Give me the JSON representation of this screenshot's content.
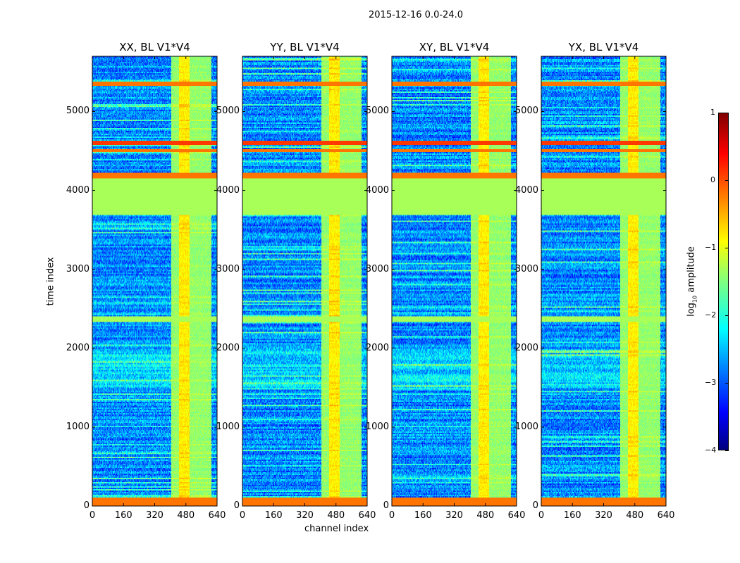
{
  "chart_data": {
    "type": "heatmap",
    "title": "2015-12-16 0.0-24.0",
    "panels": [
      {
        "title": "XX, BL V1*V4"
      },
      {
        "title": "YY, BL V1*V4"
      },
      {
        "title": "XY, BL V1*V4"
      },
      {
        "title": "YX, BL V1*V4"
      }
    ],
    "xlabel": "channel index",
    "ylabel": "time index",
    "xlim": [
      0,
      640
    ],
    "ylim": [
      0,
      5700
    ],
    "xticks": [
      "0",
      "160",
      "320",
      "480",
      "640"
    ],
    "yticks": [
      "0",
      "1000",
      "2000",
      "3000",
      "4000",
      "5000"
    ],
    "colorbar": {
      "label_main": "log",
      "label_sub": "10",
      "label_tail": " amplitude",
      "range": [
        -4,
        1
      ],
      "ticks": [
        "1",
        "0",
        "−1",
        "−2",
        "−3",
        "−4"
      ],
      "colormap": "jet"
    },
    "background_level": -2.7,
    "time_bands": [
      {
        "from": 0,
        "to": 100,
        "level": -0.2
      },
      {
        "from": 2330,
        "to": 2400,
        "level": -1.3
      },
      {
        "from": 3680,
        "to": 4150,
        "level": -1.3
      },
      {
        "from": 4150,
        "to": 4220,
        "level": -0.2
      },
      {
        "from": 4480,
        "to": 4530,
        "level": -0.2
      },
      {
        "from": 4580,
        "to": 4630,
        "level": 0.1
      },
      {
        "from": 5330,
        "to": 5380,
        "level": -0.2
      }
    ],
    "channel_bands": [
      {
        "from": 405,
        "to": 610,
        "level": -1.4
      },
      {
        "from": 445,
        "to": 500,
        "level": -0.8
      }
    ]
  }
}
